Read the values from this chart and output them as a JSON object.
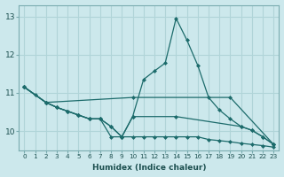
{
  "title": "",
  "xlabel": "Humidex (Indice chaleur)",
  "ylabel": "",
  "bg_color": "#cce8ec",
  "line_color": "#1c6b6b",
  "grid_color": "#b0d4d8",
  "xlim": [
    -0.5,
    23.5
  ],
  "ylim": [
    9.5,
    13.3
  ],
  "yticks": [
    10,
    11,
    12,
    13
  ],
  "xticks": [
    0,
    1,
    2,
    3,
    4,
    5,
    6,
    7,
    8,
    9,
    10,
    11,
    12,
    13,
    14,
    15,
    16,
    17,
    18,
    19,
    20,
    21,
    22,
    23
  ],
  "lines": [
    {
      "x": [
        0,
        1,
        2,
        3,
        4,
        5,
        6,
        7,
        8,
        9,
        10,
        11,
        12,
        13,
        14,
        15,
        16,
        17,
        18,
        19,
        20,
        21,
        22,
        23
      ],
      "y": [
        11.15,
        10.95,
        10.75,
        10.62,
        10.52,
        10.42,
        10.32,
        10.32,
        9.85,
        9.85,
        10.38,
        11.35,
        11.57,
        11.78,
        12.95,
        12.38,
        11.72,
        10.88,
        10.55,
        10.32,
        10.12,
        10.02,
        9.85,
        9.65
      ]
    },
    {
      "x": [
        0,
        2,
        10,
        19,
        23
      ],
      "y": [
        11.15,
        10.75,
        10.88,
        10.88,
        9.65
      ]
    },
    {
      "x": [
        0,
        2,
        3,
        4,
        5,
        6,
        7,
        8,
        9,
        10,
        14,
        20,
        21,
        22,
        23
      ],
      "y": [
        11.15,
        10.75,
        10.62,
        10.52,
        10.42,
        10.32,
        10.32,
        10.12,
        9.85,
        10.38,
        10.38,
        10.12,
        10.02,
        9.85,
        9.65
      ]
    },
    {
      "x": [
        0,
        2,
        3,
        4,
        5,
        6,
        7,
        8,
        9,
        10,
        11,
        12,
        13,
        14,
        15,
        16,
        17,
        18,
        19,
        20,
        21,
        22,
        23
      ],
      "y": [
        11.15,
        10.75,
        10.62,
        10.52,
        10.42,
        10.32,
        10.32,
        10.12,
        9.85,
        9.85,
        9.85,
        9.85,
        9.85,
        9.85,
        9.85,
        9.85,
        9.78,
        9.75,
        9.72,
        9.68,
        9.65,
        9.62,
        9.58
      ]
    }
  ]
}
